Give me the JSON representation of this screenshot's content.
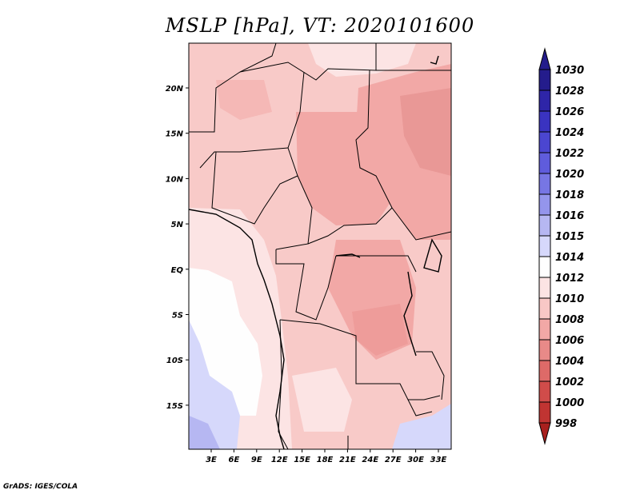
{
  "title": "MSLP [hPa], VT: 2020101600",
  "footer": "GrADS: IGES/COLA",
  "map": {
    "lat_labels": [
      "20N",
      "15N",
      "10N",
      "5N",
      "EQ",
      "5S",
      "10S",
      "15S"
    ],
    "lon_labels": [
      "3E",
      "6E",
      "9E",
      "12E",
      "15E",
      "18E",
      "21E",
      "24E",
      "27E",
      "30E",
      "33E"
    ]
  },
  "colorbar": {
    "levels": [
      "1030",
      "1028",
      "1026",
      "1024",
      "1022",
      "1020",
      "1018",
      "1016",
      "1015",
      "1014",
      "1012",
      "1010",
      "1008",
      "1006",
      "1004",
      "1002",
      "1000",
      "998"
    ],
    "colors": [
      "#241c8c",
      "#2e25a8",
      "#3a33c0",
      "#4b46d0",
      "#5f5cdc",
      "#7776e4",
      "#9495ec",
      "#b6b7f2",
      "#d6d8fb",
      "#fefefe",
      "#fce4e4",
      "#f8c8c6",
      "#f2a8a6",
      "#e88a88",
      "#de6a68",
      "#d04c4a",
      "#c03432",
      "#a8201e"
    ],
    "top_color": "#241c8c",
    "bottom_color": "#a8201e"
  }
}
